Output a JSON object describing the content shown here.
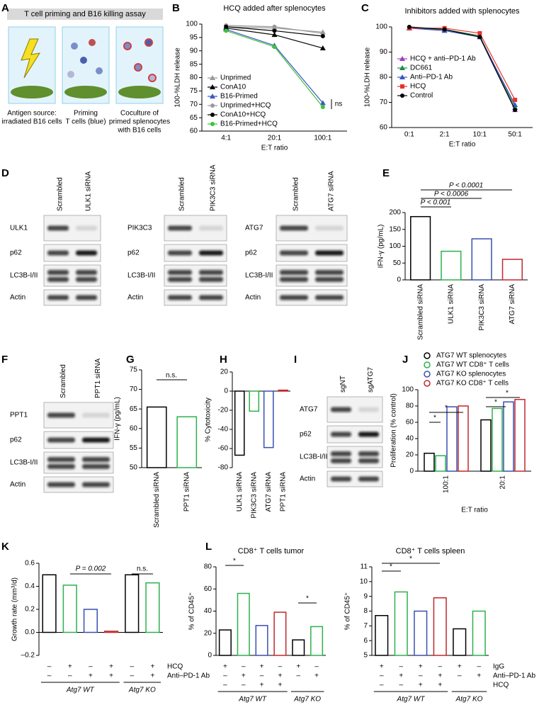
{
  "panel_labels": [
    "A",
    "B",
    "C",
    "D",
    "E",
    "F",
    "G",
    "H",
    "I",
    "J",
    "K",
    "L"
  ],
  "schematic": {
    "title": "T cell priming and B16 killing assay",
    "captions": [
      [
        "Antigen source:",
        "irradiated B16 cells"
      ],
      [
        "Priming",
        "T cells (blue)"
      ],
      [
        "Coculture of",
        "primed splenocytes",
        "with B16 cells"
      ]
    ]
  },
  "blots": [
    {
      "lanes": [
        "Scrambled",
        "ULK1 siRNA"
      ],
      "rows": [
        "ULK1",
        "p62",
        "LC3B-I/II",
        "Actin"
      ]
    },
    {
      "lanes": [
        "Scrambled",
        "PIK3C3 siRNA"
      ],
      "rows": [
        "PIK3C3",
        "p62",
        "LC3B-I/II",
        "Actin"
      ]
    },
    {
      "lanes": [
        "Scrambled",
        "ATG7 siRNA"
      ],
      "rows": [
        "ATG7",
        "p62",
        "LC3B-I/II",
        "Actin"
      ]
    },
    {
      "lanes": [
        "Scrambled",
        "PPT1 siRNA"
      ],
      "rows": [
        "PPT1",
        "p62",
        "LC3B-I/II",
        "Actin"
      ]
    },
    {
      "lanes": [
        "sgNT",
        "sgATG7"
      ],
      "rows": [
        "ATG7",
        "p62",
        "LC3B-I/II",
        "Actin"
      ]
    }
  ],
  "chart_data": [
    {
      "type": "line",
      "title": "HCQ added after splenocytes",
      "y_label": "100-%LDH release",
      "x_label": "E:T ratio",
      "categories": [
        "4:1",
        "20:1",
        "100:1"
      ],
      "ylim": [
        60,
        100
      ],
      "yticks": [
        60,
        65,
        70,
        75,
        80,
        85,
        90,
        95,
        100
      ],
      "legend": "lower left",
      "annotations": [
        "ns"
      ],
      "series": [
        {
          "name": "Unprimed",
          "color": "#9a9a9a",
          "marker": "triangle",
          "values": [
            99,
            98.5,
            97
          ]
        },
        {
          "name": "ConA10",
          "color": "#000000",
          "marker": "triangle",
          "values": [
            98.5,
            96,
            91
          ]
        },
        {
          "name": "B16-Primed",
          "color": "#3b55c4",
          "marker": "triangle",
          "values": [
            98,
            92,
            70.5
          ]
        },
        {
          "name": "Unprimed+HCQ",
          "color": "#9a9a9a",
          "marker": "circle",
          "values": [
            99.5,
            99,
            96.5
          ]
        },
        {
          "name": "ConA10+HCQ",
          "color": "#000000",
          "marker": "circle",
          "values": [
            99,
            97.5,
            95.5
          ]
        },
        {
          "name": "B16-Primed+HCQ",
          "color": "#3cc43c",
          "marker": "circle",
          "values": [
            97.5,
            91.5,
            69
          ]
        }
      ]
    },
    {
      "type": "line",
      "title": "Inhibitors added with splenocytes",
      "y_label": "100-%LDH release",
      "x_label": "E:T ratio",
      "categories": [
        "0:1",
        "2:1",
        "10:1",
        "50:1"
      ],
      "ylim": [
        60,
        100
      ],
      "yticks": [
        60,
        70,
        80,
        90,
        100
      ],
      "legend": "center left",
      "series": [
        {
          "name": "HCQ + anti–PD-1 Ab",
          "color": "#a23dbf",
          "marker": "triangle",
          "values": [
            99.5,
            99,
            96,
            67
          ]
        },
        {
          "name": "DC661",
          "color": "#1f8a4c",
          "marker": "triangle",
          "values": [
            99.5,
            99,
            96.5,
            68
          ]
        },
        {
          "name": "Anti–PD-1 Ab",
          "color": "#3b55c4",
          "marker": "triangle",
          "values": [
            99.5,
            98.5,
            96,
            69
          ]
        },
        {
          "name": "HCQ",
          "color": "#e8322b",
          "marker": "square",
          "values": [
            99.5,
            99.5,
            97.5,
            71
          ]
        },
        {
          "name": "Control",
          "color": "#000000",
          "marker": "circle",
          "values": [
            100,
            99,
            96,
            67
          ]
        }
      ]
    },
    {
      "type": "bar",
      "y_label": "IFN-γ (pg/mL)",
      "categories": [
        "Scrambled siRNA",
        "ULK1 siRNA",
        "PIK3C3 siRNA",
        "ATG7 siRNA"
      ],
      "values": [
        188,
        85,
        122,
        61
      ],
      "colors": [
        "#000000",
        "#2bb24c",
        "#3a4fb0",
        "#c0282d"
      ],
      "ylim": [
        0,
        200
      ],
      "yticks": [
        0,
        50,
        100,
        150,
        200
      ],
      "annotations": [
        "P < 0.0001",
        "P < 0.0006",
        "P < 0.001"
      ]
    },
    {
      "type": "bar",
      "y_label": "IFN-γ (pg/mL)",
      "categories": [
        "Scrambled siRNA",
        "PPT1 siRNA"
      ],
      "values": [
        65.5,
        63
      ],
      "colors": [
        "#000000",
        "#2bb24c"
      ],
      "ylim": [
        50,
        75
      ],
      "yticks": [
        50,
        55,
        60,
        65,
        70,
        75
      ],
      "annotations": [
        "n.s."
      ]
    },
    {
      "type": "bar",
      "y_label": "% Cytotoxicity",
      "categories": [
        "ULK1 siRNA",
        "PIK3C3 siRNA",
        "ATG7 siRNA",
        "PPT1 siRNA"
      ],
      "values": [
        -67,
        -21,
        -59,
        1
      ],
      "colors": [
        "#000000",
        "#2bb24c",
        "#3a4fb0",
        "#c0282d"
      ],
      "ylim": [
        -80,
        20
      ],
      "yticks": [
        -80,
        -60,
        -40,
        -20,
        0,
        20
      ]
    },
    {
      "type": "bar",
      "y_label": "Proliferation (% control)",
      "x_label": "E:T ratio",
      "categories": [
        "100:1",
        "20:1"
      ],
      "ylim": [
        0,
        100
      ],
      "yticks": [
        0,
        20,
        40,
        60,
        80,
        100
      ],
      "legend": "upper left",
      "annotations": [
        "*",
        "*",
        "*",
        "*"
      ],
      "series": [
        {
          "name": "ATG7 WT splenocytes",
          "color": "#000000",
          "values": [
            22,
            63
          ]
        },
        {
          "name": "ATG7 WT CD8⁺ T cells",
          "color": "#2bb24c",
          "values": [
            19,
            77
          ]
        },
        {
          "name": "ATG7 KO splenocytes",
          "color": "#3a4fb0",
          "values": [
            79,
            85
          ]
        },
        {
          "name": "ATG7 KO CD8⁺ T cells",
          "color": "#c0282d",
          "values": [
            80,
            88
          ]
        }
      ]
    },
    {
      "type": "bar",
      "y_label": "Growth rate (mm³/d)",
      "values": [
        0.5,
        0.41,
        0.2,
        0.01,
        0.5,
        0.43
      ],
      "colors": [
        "#000000",
        "#2bb24c",
        "#3a4fb0",
        "#c0282d",
        "#000000",
        "#2bb24c"
      ],
      "ylim": [
        -0.2,
        0.6
      ],
      "yticks": [
        {
          "value": -0.2,
          "label": "–0.2"
        },
        {
          "value": 0,
          "label": "0.0"
        },
        0.2,
        0.4,
        0.6
      ],
      "conditions": [
        {
          "name": "HCQ",
          "values": [
            "–",
            "+",
            "–",
            "+",
            "–",
            "+"
          ]
        },
        {
          "name": "Anti–PD-1 Ab",
          "values": [
            "–",
            "–",
            "+",
            "+",
            "–",
            "+"
          ]
        }
      ],
      "groups": [
        "Atg7 WT",
        "Atg7 WT",
        "Atg7 WT",
        "Atg7 WT",
        "Atg7 KO",
        "Atg7 KO"
      ],
      "annotations": [
        "P = 0.002",
        "n.s."
      ]
    },
    {
      "type": "bar",
      "title": "CD8⁺ T cells tumor",
      "y_label": "% of CD45⁺",
      "values": [
        23,
        56,
        27,
        39,
        14,
        26
      ],
      "colors": [
        "#000000",
        "#2bb24c",
        "#3a4fb0",
        "#c0282d",
        "#000000",
        "#2bb24c"
      ],
      "ylim": [
        0,
        80
      ],
      "yticks": [
        0,
        20,
        40,
        60,
        80
      ],
      "conditions": [
        {
          "values": [
            "+",
            "–",
            "+",
            "–",
            "+",
            "–"
          ]
        },
        {
          "values": [
            "–",
            "+",
            "–",
            "+",
            "–",
            "+"
          ]
        },
        {
          "values": [
            "–",
            "–",
            "+",
            "+",
            null,
            null
          ]
        }
      ],
      "groups": [
        "Atg7 WT",
        "Atg7 WT",
        "Atg7 WT",
        "Atg7 WT",
        "Atg7 KO",
        "Atg7 KO"
      ],
      "annotations": [
        "*",
        "*"
      ]
    },
    {
      "type": "bar",
      "title": "CD8⁺ T cells spleen",
      "y_label": "% of CD45⁺",
      "values": [
        7.7,
        9.3,
        8.0,
        8.9,
        6.8,
        8.0
      ],
      "colors": [
        "#000000",
        "#2bb24c",
        "#3a4fb0",
        "#c0282d",
        "#000000",
        "#2bb24c"
      ],
      "ylim": [
        5,
        11
      ],
      "yticks": [
        5,
        6,
        7,
        8,
        9,
        10,
        11
      ],
      "conditions": [
        {
          "name": "IgG",
          "values": [
            "+",
            "–",
            "+",
            "–",
            "+",
            "–"
          ]
        },
        {
          "name": "Anti–PD-1 Ab",
          "values": [
            "–",
            "+",
            "–",
            "+",
            "–",
            "+"
          ]
        },
        {
          "name": "HCQ",
          "values": [
            "–",
            "–",
            "+",
            "+",
            null,
            null
          ]
        }
      ],
      "groups": [
        "Atg7 WT",
        "Atg7 WT",
        "Atg7 WT",
        "Atg7 WT",
        "Atg7 KO",
        "Atg7 KO"
      ],
      "annotations": [
        "*",
        "*"
      ]
    }
  ]
}
